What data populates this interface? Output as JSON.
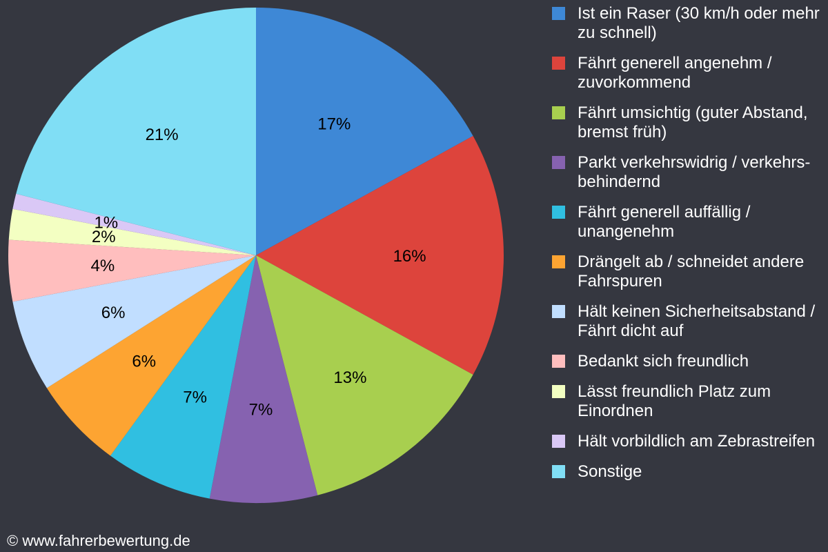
{
  "chart_data": {
    "type": "pie",
    "slices": [
      {
        "label": "Ist ein Raser (30 km/h oder mehr zu schnell)",
        "value": 17,
        "display": "17%",
        "color": "#3e88d6"
      },
      {
        "label": "Fährt generell angenehm / zuvorkommend",
        "value": 16,
        "display": "16%",
        "color": "#dd443c"
      },
      {
        "label": "Fährt umsichtig (guter Abstand, bremst früh)",
        "value": 13,
        "display": "13%",
        "color": "#a8cf4f"
      },
      {
        "label": "Parkt verkehrswidrig / verkehrs-behindernd",
        "value": 7,
        "display": "7%",
        "color": "#8662b0"
      },
      {
        "label": "Fährt generell auffällig / unangenehm",
        "value": 7,
        "display": "7%",
        "color": "#30bfe1"
      },
      {
        "label": "Drängelt ab / schneidet andere Fahrspuren",
        "value": 6,
        "display": "6%",
        "color": "#fda432"
      },
      {
        "label": "Hält keinen Sicherheitsabstand / Fährt dicht auf",
        "value": 6,
        "display": "6%",
        "color": "#c1deff"
      },
      {
        "label": "Bedankt sich freundlich",
        "value": 4,
        "display": "4%",
        "color": "#ffbebe"
      },
      {
        "label": "Lässt freundlich Platz zum Einordnen",
        "value": 2,
        "display": "2%",
        "color": "#f3ffc2"
      },
      {
        "label": "Hält vorbildlich am Zebrastreifen",
        "value": 1,
        "display": "1%",
        "color": "#dac8f6"
      },
      {
        "label": "Sonstige",
        "value": 21,
        "display": "21%",
        "color": "#80def5"
      }
    ],
    "start_angle_deg": 0,
    "direction": "clockwise",
    "legend_position": "right",
    "background": "#353740"
  },
  "footer": {
    "text": "© www.fahrerbewertung.de"
  }
}
